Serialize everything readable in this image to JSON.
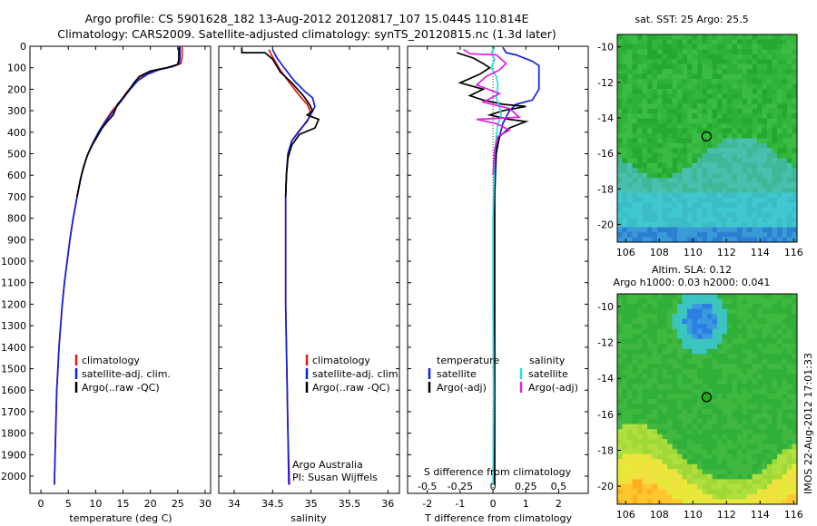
{
  "title_lines": [
    "Argo profile: CS 5901628_182 13-Aug-2012 20120817_107 15.044S 110.814E",
    "Climatology: CARS2009. Satellite-adjusted climatology: synTS_20120815.nc (1.3d later)"
  ],
  "colors": {
    "climatology": "#e8170f",
    "satellite": "#1020e0",
    "argo": "#000000",
    "sal_sat": "#22e0e0",
    "sal_argo": "#e020e0"
  },
  "chart_data": [
    {
      "type": "line",
      "name_key": "temperature",
      "xlabel": "temperature (deg C)",
      "ylabel": "",
      "xlim": [
        -2,
        31
      ],
      "ylim": [
        2080,
        0
      ],
      "xticks": [
        "0",
        "5",
        "10",
        "15",
        "20",
        "25",
        "30"
      ],
      "yticks": [
        "0",
        "100",
        "200",
        "300",
        "400",
        "500",
        "600",
        "700",
        "800",
        "900",
        "1000",
        "1100",
        "1200",
        "1300",
        "1400",
        "1500",
        "1600",
        "1700",
        "1800",
        "1900",
        "2000"
      ],
      "legend": [
        "climatology",
        "satellite-adj. clim.",
        "Argo(..raw -QC)"
      ],
      "series": [
        {
          "name": "climatology",
          "color": "climatology",
          "points": [
            [
              25.8,
              0
            ],
            [
              25.8,
              50
            ],
            [
              25.6,
              80
            ],
            [
              24,
              95
            ],
            [
              21,
              110
            ],
            [
              19,
              130
            ],
            [
              17.2,
              170
            ],
            [
              15.8,
              210
            ],
            [
              14.4,
              260
            ],
            [
              13,
              300
            ],
            [
              11.7,
              350
            ],
            [
              10.5,
              400
            ],
            [
              9.3,
              460
            ],
            [
              8.3,
              520
            ],
            [
              7.4,
              600
            ],
            [
              6.6,
              700
            ],
            [
              5.9,
              800
            ],
            [
              5.3,
              900
            ],
            [
              4.8,
              1000
            ],
            [
              4.3,
              1100
            ],
            [
              3.9,
              1200
            ],
            [
              3.6,
              1300
            ],
            [
              3.3,
              1400
            ],
            [
              3.1,
              1500
            ],
            [
              2.9,
              1600
            ],
            [
              2.8,
              1700
            ],
            [
              2.7,
              1800
            ],
            [
              2.6,
              1900
            ],
            [
              2.5,
              2000
            ],
            [
              2.5,
              2040
            ]
          ]
        },
        {
          "name": "satellite-adj. clim.",
          "color": "satellite",
          "points": [
            [
              25.4,
              0
            ],
            [
              25.4,
              50
            ],
            [
              25.3,
              80
            ],
            [
              24,
              95
            ],
            [
              21.5,
              110
            ],
            [
              19.5,
              130
            ],
            [
              17.7,
              160
            ],
            [
              16.3,
              200
            ],
            [
              14.8,
              250
            ],
            [
              13.3,
              300
            ],
            [
              11.8,
              350
            ],
            [
              10.5,
              400
            ],
            [
              9.3,
              460
            ],
            [
              8.3,
              520
            ],
            [
              7.4,
              600
            ],
            [
              6.6,
              700
            ],
            [
              5.9,
              800
            ],
            [
              5.3,
              900
            ],
            [
              4.8,
              1000
            ],
            [
              4.3,
              1100
            ],
            [
              3.9,
              1200
            ],
            [
              3.6,
              1300
            ],
            [
              3.3,
              1400
            ],
            [
              3.1,
              1500
            ],
            [
              2.9,
              1600
            ],
            [
              2.8,
              1700
            ],
            [
              2.7,
              1800
            ],
            [
              2.6,
              1900
            ],
            [
              2.5,
              2000
            ],
            [
              2.5,
              2040
            ]
          ]
        },
        {
          "name": "Argo(..raw -QC)",
          "color": "argo",
          "points": [
            [
              25.2,
              5
            ],
            [
              25.2,
              60
            ],
            [
              25,
              85
            ],
            [
              23,
              100
            ],
            [
              20,
              115
            ],
            [
              18,
              140
            ],
            [
              17,
              170
            ],
            [
              16.2,
              200
            ],
            [
              15,
              240
            ],
            [
              14,
              270
            ],
            [
              13.5,
              300
            ],
            [
              13.2,
              320
            ],
            [
              12.3,
              345
            ],
            [
              11.2,
              380
            ],
            [
              10.3,
              420
            ],
            [
              9.4,
              460
            ],
            [
              8.6,
              500
            ],
            [
              7.8,
              560
            ],
            [
              7.2,
              620
            ],
            [
              6.6,
              700
            ]
          ]
        }
      ]
    },
    {
      "type": "line",
      "name_key": "salinity",
      "xlabel": "salinity",
      "ylabel": "",
      "xlim": [
        33.8,
        36.15
      ],
      "ylim": [
        2080,
        0
      ],
      "xticks": [
        "34",
        "34.5",
        "35",
        "35.5",
        "36"
      ],
      "legend": [
        "climatology",
        "satellite-adj. clim.",
        "Argo(..raw -QC)"
      ],
      "footer": [
        "Argo Australia",
        "PI: Susan Wijffels"
      ],
      "series": [
        {
          "name": "climatology",
          "color": "climatology",
          "points": [
            [
              34.45,
              15
            ],
            [
              34.5,
              50
            ],
            [
              34.6,
              110
            ],
            [
              34.72,
              170
            ],
            [
              34.85,
              230
            ],
            [
              34.95,
              270
            ],
            [
              35.0,
              310
            ],
            [
              34.95,
              350
            ],
            [
              34.85,
              390
            ],
            [
              34.75,
              440
            ],
            [
              34.7,
              500
            ],
            [
              34.68,
              600
            ],
            [
              34.67,
              700
            ],
            [
              34.67,
              800
            ],
            [
              34.67,
              900
            ],
            [
              34.67,
              1000
            ],
            [
              34.67,
              1200
            ],
            [
              34.68,
              1400
            ],
            [
              34.69,
              1600
            ],
            [
              34.7,
              1800
            ],
            [
              34.72,
              2040
            ]
          ]
        },
        {
          "name": "satellite-adj. clim.",
          "color": "satellite",
          "points": [
            [
              34.5,
              15
            ],
            [
              34.55,
              50
            ],
            [
              34.65,
              100
            ],
            [
              34.78,
              160
            ],
            [
              34.92,
              210
            ],
            [
              35.02,
              240
            ],
            [
              35.05,
              280
            ],
            [
              34.98,
              330
            ],
            [
              34.88,
              380
            ],
            [
              34.75,
              440
            ],
            [
              34.7,
              500
            ],
            [
              34.68,
              600
            ],
            [
              34.67,
              700
            ],
            [
              34.67,
              800
            ],
            [
              34.67,
              900
            ],
            [
              34.67,
              1000
            ],
            [
              34.67,
              1200
            ],
            [
              34.68,
              1400
            ],
            [
              34.69,
              1600
            ],
            [
              34.7,
              1800
            ],
            [
              34.71,
              2040
            ]
          ]
        },
        {
          "name": "Argo(..raw -QC)",
          "color": "argo",
          "points": [
            [
              34.1,
              5
            ],
            [
              34.1,
              30
            ],
            [
              34.4,
              30
            ],
            [
              34.5,
              60
            ],
            [
              34.6,
              120
            ],
            [
              34.75,
              170
            ],
            [
              34.9,
              230
            ],
            [
              34.98,
              270
            ],
            [
              35.02,
              300
            ],
            [
              34.95,
              320
            ],
            [
              35.1,
              340
            ],
            [
              35.05,
              380
            ],
            [
              34.85,
              410
            ],
            [
              34.75,
              460
            ],
            [
              34.7,
              520
            ],
            [
              34.68,
              600
            ],
            [
              34.67,
              700
            ]
          ]
        }
      ]
    },
    {
      "type": "line",
      "name_key": "difference",
      "xlabel": "T difference from climatology",
      "xlabel_top": "S difference from climatology",
      "xlim": [
        -2.6,
        2.9
      ],
      "ylim": [
        2080,
        0
      ],
      "xticks": [
        "-2",
        "-1",
        "0",
        "1",
        "2"
      ],
      "xticks_top": [
        "-0.5",
        "-0.25",
        "0",
        "0.25",
        "0.5"
      ],
      "legend_temp": {
        "title": "temperature",
        "items": [
          "satellite",
          "Argo(-adj)"
        ]
      },
      "legend_sal": {
        "title": "salinity",
        "items": [
          "satellite",
          "Argo(-adj)"
        ]
      },
      "series": [
        {
          "name": "temperature satellite",
          "color": "satellite",
          "points": [
            [
              0.3,
              5
            ],
            [
              0.4,
              30
            ],
            [
              0.7,
              40
            ],
            [
              1.2,
              70
            ],
            [
              1.4,
              90
            ],
            [
              1.4,
              200
            ],
            [
              1.2,
              250
            ],
            [
              0.7,
              270
            ],
            [
              0.5,
              300
            ],
            [
              0.3,
              360
            ],
            [
              0.2,
              420
            ],
            [
              0.1,
              500
            ],
            [
              0.05,
              700
            ],
            [
              0.05,
              1000
            ],
            [
              0.05,
              1500
            ],
            [
              0.05,
              2040
            ]
          ]
        },
        {
          "name": "temperature Argo(-adj)",
          "color": "argo",
          "points": [
            [
              -1.1,
              30
            ],
            [
              -0.6,
              55
            ],
            [
              -0.3,
              80
            ],
            [
              -0.1,
              100
            ],
            [
              -0.4,
              130
            ],
            [
              -1.0,
              170
            ],
            [
              -0.3,
              200
            ],
            [
              -0.7,
              230
            ],
            [
              -0.3,
              250
            ],
            [
              0.3,
              270
            ],
            [
              1.0,
              280
            ],
            [
              0.3,
              300
            ],
            [
              -0.1,
              320
            ],
            [
              0.5,
              340
            ],
            [
              1.0,
              350
            ],
            [
              0.5,
              380
            ],
            [
              0.2,
              420
            ],
            [
              0.1,
              480
            ],
            [
              0.05,
              600
            ],
            [
              0.05,
              2040
            ]
          ]
        },
        {
          "name": "salinity satellite",
          "color": "sal_sat",
          "points": [
            [
              0.05,
              5
            ],
            [
              -0.05,
              30
            ],
            [
              0.05,
              60
            ],
            [
              -0.05,
              100
            ],
            [
              0.1,
              140
            ],
            [
              0.15,
              180
            ],
            [
              0.1,
              240
            ],
            [
              0.2,
              280
            ],
            [
              0.25,
              320
            ],
            [
              0.15,
              360
            ],
            [
              0.1,
              420
            ],
            [
              0.05,
              500
            ],
            [
              0.0,
              800
            ],
            [
              0.0,
              1200
            ],
            [
              0.02,
              1600
            ],
            [
              0.0,
              2040
            ]
          ]
        },
        {
          "name": "salinity Argo(-adj)",
          "color": "sal_argo",
          "points": [
            [
              -0.9,
              15
            ],
            [
              -0.7,
              35
            ],
            [
              0.1,
              40
            ],
            [
              0.4,
              80
            ],
            [
              0.2,
              110
            ],
            [
              -0.2,
              140
            ],
            [
              -0.5,
              180
            ],
            [
              0.2,
              220
            ],
            [
              -0.3,
              260
            ],
            [
              0.5,
              290
            ],
            [
              0.8,
              330
            ],
            [
              -0.5,
              340
            ],
            [
              0.1,
              360
            ],
            [
              0.5,
              390
            ],
            [
              0.15,
              420
            ],
            [
              0.05,
              480
            ],
            [
              0.0,
              600
            ]
          ]
        }
      ]
    }
  ],
  "maps": [
    {
      "title": "sat. SST: 25 Argo: 25.5",
      "xticks": [
        "106",
        "108",
        "110",
        "112",
        "114",
        "116"
      ],
      "yticks": [
        "-10",
        "-12",
        "-14",
        "-16",
        "-18",
        "-20"
      ],
      "xlim": [
        105.5,
        116.2
      ],
      "ylim": [
        -9.3,
        -21
      ],
      "marker": {
        "lon": 110.814,
        "lat": -15.044
      },
      "palette": [
        "#1a8e1a",
        "#2aa22a",
        "#3ab63a",
        "#4ac24a"
      ],
      "lower_palette": [
        "#30b090",
        "#40c0b0",
        "#4ad0d0"
      ]
    },
    {
      "title_lines": [
        "Altim. SLA: 0.12",
        "Argo h1000: 0.03 h2000: 0.041"
      ],
      "xticks": [
        "106",
        "108",
        "110",
        "112",
        "114",
        "116"
      ],
      "yticks": [
        "-10",
        "-12",
        "-14",
        "-16",
        "-18",
        "-20"
      ],
      "xlim": [
        105.5,
        116.2
      ],
      "ylim": [
        -9.3,
        -21
      ],
      "marker": {
        "lon": 110.814,
        "lat": -15.044
      }
    }
  ],
  "side_text": "IMOS 22-Aug-2012 17:01:33"
}
